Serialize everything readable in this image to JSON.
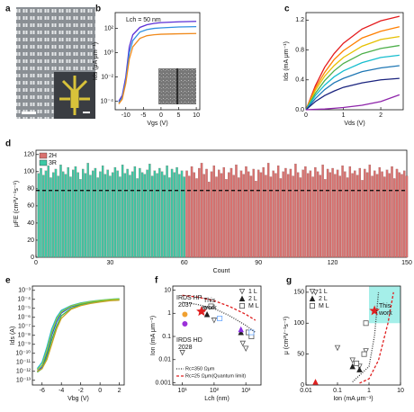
{
  "panel_a": {
    "label": "a"
  },
  "chart_data": [
    {
      "panel": "b",
      "type": "line",
      "ylog": true,
      "xlabel": "Vgs (V)",
      "ylabel": "Ids (μA μm⁻¹)",
      "x": [
        -12,
        -11,
        -10,
        -9,
        -8,
        -6,
        -4,
        -2,
        0,
        5,
        10
      ],
      "series": [
        {
          "color": "#5a2fd6",
          "values": [
            0.0001,
            0.0003,
            0.01,
            3,
            30,
            120,
            200,
            260,
            300,
            350,
            380
          ]
        },
        {
          "color": "#2f8fe0",
          "values": [
            8e-05,
            0.0002,
            0.005,
            1,
            10,
            50,
            80,
            100,
            110,
            130,
            140
          ]
        },
        {
          "color": "#f08a1c",
          "values": [
            6e-05,
            0.00015,
            0.003,
            0.3,
            3,
            15,
            25,
            30,
            33,
            36,
            38
          ]
        }
      ],
      "xlim": [
        -13,
        11
      ],
      "xticks": [
        -10,
        -5,
        0,
        5,
        10
      ],
      "ylim": [
        2e-05,
        2000
      ],
      "yticks": [
        {
          "value": 0.0001,
          "label": "10⁻⁴"
        },
        {
          "value": 0.01,
          "label": "10⁻²"
        },
        {
          "value": 1,
          "label": "10⁰"
        },
        {
          "value": 100,
          "label": "10²"
        }
      ],
      "annotations": [
        {
          "text": "Lch = 50 nm",
          "color": "#000"
        }
      ]
    },
    {
      "panel": "c",
      "type": "line",
      "xlabel": "Vds (V)",
      "ylabel": "Ids (mA μm⁻¹)",
      "x": [
        0,
        0.25,
        0.5,
        0.75,
        1,
        1.5,
        2,
        2.5
      ],
      "series": [
        {
          "color": "#e41a1c",
          "values": [
            0,
            0.32,
            0.57,
            0.75,
            0.89,
            1.08,
            1.19,
            1.25
          ]
        },
        {
          "color": "#ff7f00",
          "values": [
            0,
            0.29,
            0.5,
            0.67,
            0.79,
            0.96,
            1.05,
            1.11
          ]
        },
        {
          "color": "#e6c000",
          "values": [
            0,
            0.26,
            0.45,
            0.59,
            0.7,
            0.85,
            0.94,
            0.98
          ]
        },
        {
          "color": "#4daf4a",
          "values": [
            0,
            0.22,
            0.39,
            0.52,
            0.62,
            0.75,
            0.82,
            0.86
          ]
        },
        {
          "color": "#17becf",
          "values": [
            0,
            0.19,
            0.33,
            0.44,
            0.52,
            0.63,
            0.7,
            0.73
          ]
        },
        {
          "color": "#1f77b4",
          "values": [
            0,
            0.15,
            0.27,
            0.36,
            0.42,
            0.51,
            0.56,
            0.59
          ]
        },
        {
          "color": "#1a237e",
          "values": [
            0,
            0.11,
            0.19,
            0.25,
            0.3,
            0.36,
            0.4,
            0.42
          ]
        },
        {
          "color": "#8e24aa",
          "values": [
            0,
            0.005,
            0.01,
            0.02,
            0.03,
            0.06,
            0.11,
            0.2
          ]
        }
      ],
      "xlim": [
        0,
        2.6
      ],
      "xticks": [
        0,
        1,
        2
      ],
      "ylim": [
        0,
        1.3
      ],
      "yticks": [
        {
          "value": 0,
          "label": "0.0"
        },
        0.4,
        0.8,
        1.2
      ]
    },
    {
      "panel": "d",
      "type": "bar",
      "xlabel": "Count",
      "ylabel": "μFE (cm²V⁻¹s⁻¹)",
      "legend": "upper left",
      "series": [
        {
          "name": "2H",
          "color": "#d9716f",
          "x": [
            61,
            62,
            63,
            64,
            65,
            66,
            67,
            68,
            69,
            70,
            71,
            72,
            73,
            74,
            75,
            76,
            77,
            78,
            79,
            80,
            81,
            82,
            83,
            84,
            85,
            86,
            87,
            88,
            89,
            90,
            91,
            92,
            93,
            94,
            95,
            96,
            97,
            98,
            99,
            100,
            101,
            102,
            103,
            104,
            105,
            106,
            107,
            108,
            109,
            110,
            111,
            112,
            113,
            114,
            115,
            116,
            117,
            118,
            119,
            120,
            121,
            122,
            123,
            124,
            125,
            126,
            127,
            128,
            129,
            130,
            131,
            132,
            133,
            134,
            135,
            136,
            137,
            138,
            139,
            140,
            141,
            142,
            143,
            144,
            145,
            146,
            147,
            148,
            149,
            150
          ],
          "values": [
            101,
            95,
            106,
            99,
            92,
            104,
            110,
            97,
            103,
            88,
            100,
            107,
            94,
            102,
            98,
            105,
            91,
            99,
            104,
            96,
            108,
            93,
            101,
            97,
            106,
            100,
            95,
            103,
            89,
            102,
            99,
            105,
            96,
            110,
            94,
            101,
            98,
            107,
            92,
            100,
            104,
            97,
            103,
            95,
            109,
            99,
            93,
            102,
            106,
            98,
            101,
            94,
            105,
            100,
            96,
            108,
            91,
            103,
            99,
            104,
            97,
            102,
            95,
            107,
            100,
            93,
            106,
            98,
            101,
            96,
            104,
            90,
            103,
            99,
            108,
            95,
            101,
            97,
            105,
            100,
            94,
            102,
            98,
            106,
            92,
            103,
            99,
            97,
            101,
            95
          ]
        },
        {
          "name": "3R",
          "color": "#3cc9a5",
          "x": [
            1,
            2,
            3,
            4,
            5,
            6,
            7,
            8,
            9,
            10,
            11,
            12,
            13,
            14,
            15,
            16,
            17,
            18,
            19,
            20,
            21,
            22,
            23,
            24,
            25,
            26,
            27,
            28,
            29,
            30,
            31,
            32,
            33,
            34,
            35,
            36,
            37,
            38,
            39,
            40,
            41,
            42,
            43,
            44,
            45,
            46,
            47,
            48,
            49,
            50,
            51,
            52,
            53,
            54,
            55,
            56,
            57,
            58,
            59,
            60
          ],
          "values": [
            98,
            104,
            96,
            101,
            107,
            93,
            99,
            103,
            95,
            108,
            100,
            97,
            105,
            94,
            102,
            106,
            99,
            91,
            103,
            98,
            110,
            96,
            101,
            104,
            93,
            100,
            107,
            97,
            102,
            95,
            99,
            105,
            101,
            94,
            108,
            98,
            103,
            96,
            100,
            106,
            92,
            104,
            99,
            97,
            102,
            109,
            95,
            101,
            98,
            104,
            100,
            96,
            107,
            93,
            103,
            99,
            105,
            97,
            101,
            94
          ]
        }
      ],
      "reference_line": 78,
      "xlim": [
        0,
        150
      ],
      "xticks": [
        0,
        30,
        60,
        90,
        120,
        150
      ],
      "ylim": [
        0,
        125
      ],
      "yticks": [
        0,
        20,
        40,
        60,
        80,
        100,
        120
      ]
    },
    {
      "panel": "e",
      "type": "line",
      "ylog": true,
      "xlabel": "Vbg (V)",
      "ylabel": "Ids (A)",
      "x": [
        -6.5,
        -6,
        -5.5,
        -5,
        -4.5,
        -4,
        -3,
        -2,
        -1,
        0,
        1,
        2
      ],
      "series": [
        {
          "color": "#1f4fd8",
          "values": [
            1e-12,
            3e-12,
            1e-10,
            1e-08,
            3e-07,
            3e-06,
            1.5e-05,
            3e-05,
            5e-05,
            7e-05,
            9e-05,
            0.0001
          ]
        },
        {
          "color": "#22b5c9",
          "values": [
            2e-12,
            1e-11,
            5e-10,
            5e-08,
            1e-06,
            6e-06,
            2e-05,
            4e-05,
            6e-05,
            8e-05,
            0.0001,
            0.00012
          ]
        },
        {
          "color": "#3cb44b",
          "values": [
            8e-13,
            2e-12,
            4e-11,
            3e-09,
            1e-07,
            1.5e-06,
            1e-05,
            2.5e-05,
            4e-05,
            6e-05,
            8e-05,
            9e-05
          ]
        },
        {
          "color": "#9acd32",
          "values": [
            1.5e-12,
            5e-12,
            2e-10,
            2e-08,
            6e-07,
            4e-06,
            1.8e-05,
            3.5e-05,
            5.5e-05,
            7.5e-05,
            9.5e-05,
            0.00011
          ]
        },
        {
          "color": "#c9a227",
          "values": [
            1e-12,
            2e-12,
            2e-11,
            1e-09,
            5e-08,
            8e-07,
            8e-06,
            2e-05,
            3.5e-05,
            5e-05,
            7e-05,
            8e-05
          ]
        }
      ],
      "xlim": [
        -7,
        2.5
      ],
      "xticks": [
        -6,
        -4,
        -2,
        0,
        2
      ],
      "ylim": [
        3e-14,
        0.003
      ],
      "yticks": [
        {
          "value": 1e-13,
          "label": "10⁻¹³"
        },
        {
          "value": 1e-12,
          "label": "10⁻¹²"
        },
        {
          "value": 1e-11,
          "label": "10⁻¹¹"
        },
        {
          "value": 1e-10,
          "label": "10⁻¹⁰"
        },
        {
          "value": 1e-09,
          "label": "10⁻⁹"
        },
        {
          "value": 1e-08,
          "label": "10⁻⁸"
        },
        {
          "value": 1e-07,
          "label": "10⁻⁷"
        },
        {
          "value": 1e-06,
          "label": "10⁻⁶"
        },
        {
          "value": 1e-05,
          "label": "10⁻⁵"
        },
        {
          "value": 0.0001,
          "label": "10⁻⁴"
        },
        {
          "value": 0.001,
          "label": "10⁻³"
        }
      ]
    },
    {
      "panel": "f",
      "type": "scatter",
      "xlog": true,
      "ylog": true,
      "xlabel": "Lch (nm)",
      "ylabel": "Ion (mA μm⁻¹)",
      "legend": "upper right",
      "line_legend": "lower left",
      "series": [
        {
          "name": "1 L",
          "color": "#555",
          "marker": "triangle-down-open",
          "x": [
            10,
            50,
            100,
            800,
            1000
          ],
          "values": [
            0.02,
            1.5,
            0.5,
            0.05,
            0.03
          ]
        },
        {
          "name": "2 L",
          "color": "#222",
          "marker": "triangle",
          "x": [
            60,
            700
          ],
          "values": [
            0.9,
            0.15
          ]
        },
        {
          "name": "M L",
          "color": "#555",
          "marker": "square-open",
          "x": [
            80,
            1200,
            1500
          ],
          "values": [
            2,
            0.15,
            0.1
          ]
        },
        {
          "color": "#f0a030",
          "marker": "circle",
          "x": [
            12
          ],
          "values": [
            0.9
          ]
        },
        {
          "color": "#9b30d9",
          "marker": "circle",
          "x": [
            12
          ],
          "values": [
            0.35
          ]
        },
        {
          "color": "#6aa8ff",
          "marker": "square-open",
          "x": [
            150,
            1500
          ],
          "values": [
            0.6,
            0.15
          ]
        },
        {
          "color": "#8a2be2",
          "marker": "triangle",
          "x": [
            700
          ],
          "values": [
            0.2
          ]
        },
        {
          "color": "#e02020",
          "marker": "star",
          "x": [
            40
          ],
          "values": [
            1.2
          ]
        },
        {
          "name": "Rc=350 Ωμm",
          "color": "#333",
          "dash": "dotted",
          "x": [
            10,
            30,
            100,
            300,
            1000,
            2000
          ],
          "values": [
            3,
            2.4,
            1.6,
            0.8,
            0.3,
            0.15
          ]
        },
        {
          "name": "Rc=25 Ωμm(Quantum limit)",
          "color": "#e02020",
          "dash": "dashed",
          "x": [
            10,
            30,
            100,
            300,
            1000,
            2000
          ],
          "values": [
            6,
            5,
            3.5,
            2,
            0.9,
            0.5
          ]
        }
      ],
      "xlim": [
        5,
        3000
      ],
      "xticks": [
        {
          "value": 10,
          "label": "10¹"
        },
        {
          "value": 100,
          "label": "10²"
        },
        {
          "value": 1000,
          "label": "10³"
        }
      ],
      "ylim": [
        0.0008,
        15
      ],
      "yticks": [
        0.001,
        0.01,
        0.1,
        1,
        10
      ],
      "annotations": [
        {
          "text": "IRDS HP",
          "color": "#f0a030"
        },
        {
          "text": "2037",
          "color": "#f0a030"
        },
        {
          "text": "IRDS HD",
          "color": "#9b30d9"
        },
        {
          "text": "2028",
          "color": "#9b30d9"
        },
        {
          "text": "This",
          "color": "#e02020"
        },
        {
          "text": "work",
          "color": "#e02020"
        }
      ]
    },
    {
      "panel": "g",
      "type": "scatter",
      "xlog": true,
      "xlabel": "Ion (mA μm⁻¹)",
      "ylabel": "μ (cm²V⁻¹s⁻¹)",
      "legend": "upper left",
      "shaded_region": {
        "x": [
          1,
          10
        ],
        "y": [
          100,
          160
        ],
        "color": "#7fe8e0"
      },
      "series": [
        {
          "name": "1 L",
          "color": "#555",
          "marker": "triangle-down-open",
          "x": [
            0.02,
            0.1,
            0.3,
            0.5,
            0.8
          ],
          "values": [
            150,
            60,
            40,
            30,
            55
          ]
        },
        {
          "name": "2 L",
          "color": "#222",
          "marker": "triangle",
          "x": [
            0.3,
            0.5
          ],
          "values": [
            30,
            25
          ]
        },
        {
          "name": "M L",
          "color": "#555",
          "marker": "square-open",
          "x": [
            0.4,
            0.7,
            0.8
          ],
          "values": [
            35,
            50,
            100
          ]
        },
        {
          "color": "#e02020",
          "marker": "triangle",
          "x": [
            0.02
          ],
          "values": [
            5
          ]
        },
        {
          "color": "#e02020",
          "marker": "star",
          "x": [
            1.5
          ],
          "values": [
            120
          ]
        },
        {
          "color": "#333",
          "dash": "dotted",
          "x": [
            0.3,
            1,
            1.5,
            2
          ],
          "values": [
            5,
            30,
            80,
            150
          ]
        },
        {
          "color": "#e02020",
          "dash": "dashed",
          "x": [
            0.5,
            1,
            2,
            4,
            6
          ],
          "values": [
            3,
            10,
            40,
            100,
            150
          ]
        }
      ],
      "xlim": [
        0.01,
        10
      ],
      "xticks": [
        0.01,
        0.1,
        1,
        10
      ],
      "ylim": [
        0,
        160
      ],
      "yticks": [
        0,
        50,
        100,
        150
      ],
      "annotations": [
        {
          "text": "This",
          "color": "#e02020"
        },
        {
          "text": "work",
          "color": "#e02020"
        }
      ]
    }
  ]
}
